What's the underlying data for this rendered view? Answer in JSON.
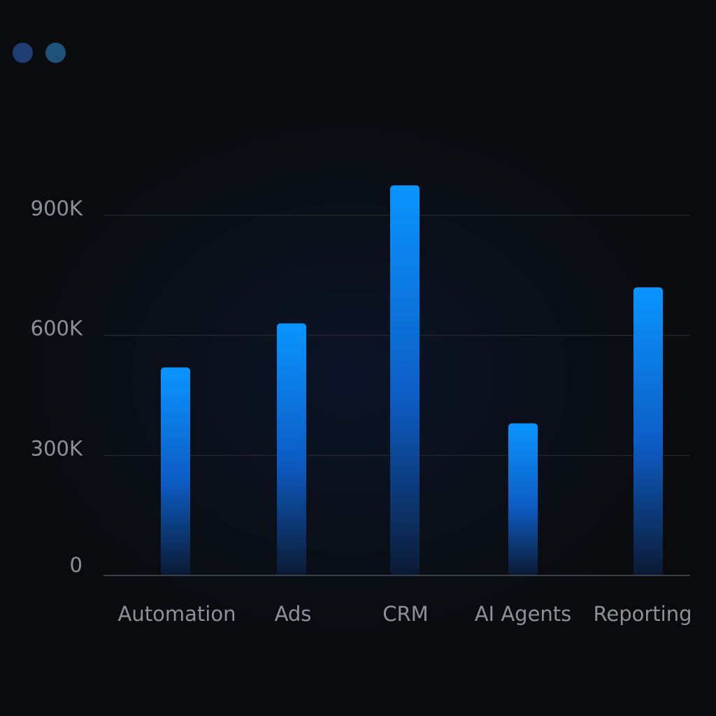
{
  "window": {
    "controls": [
      {
        "icon": "window-dot-icon",
        "color": "#1e3d73"
      },
      {
        "icon": "window-dot-icon",
        "color": "#1f5277"
      }
    ]
  },
  "chart_data": {
    "type": "bar",
    "title": "",
    "xlabel": "",
    "ylabel": "",
    "categories": [
      "Automation",
      "Ads",
      "CRM",
      "AI Agents",
      "Reporting"
    ],
    "values": [
      520000,
      630000,
      975000,
      380000,
      720000
    ],
    "ylim": [
      0,
      900000
    ],
    "yticks": [
      0,
      300000,
      600000,
      900000
    ],
    "ytick_labels": [
      "0",
      "300K",
      "600K",
      "900K"
    ],
    "grid": true,
    "legend": "none",
    "colors": {
      "bar_top": "#0a95ff",
      "bar_mid": "#0d5cc4",
      "bar_bottom": "#0b1a33",
      "grid": "#2a2f37",
      "axis": "#4a4f58",
      "tick_label": "#8e9199",
      "category_label": "#8e9199",
      "background": "#0a0b0d"
    }
  }
}
